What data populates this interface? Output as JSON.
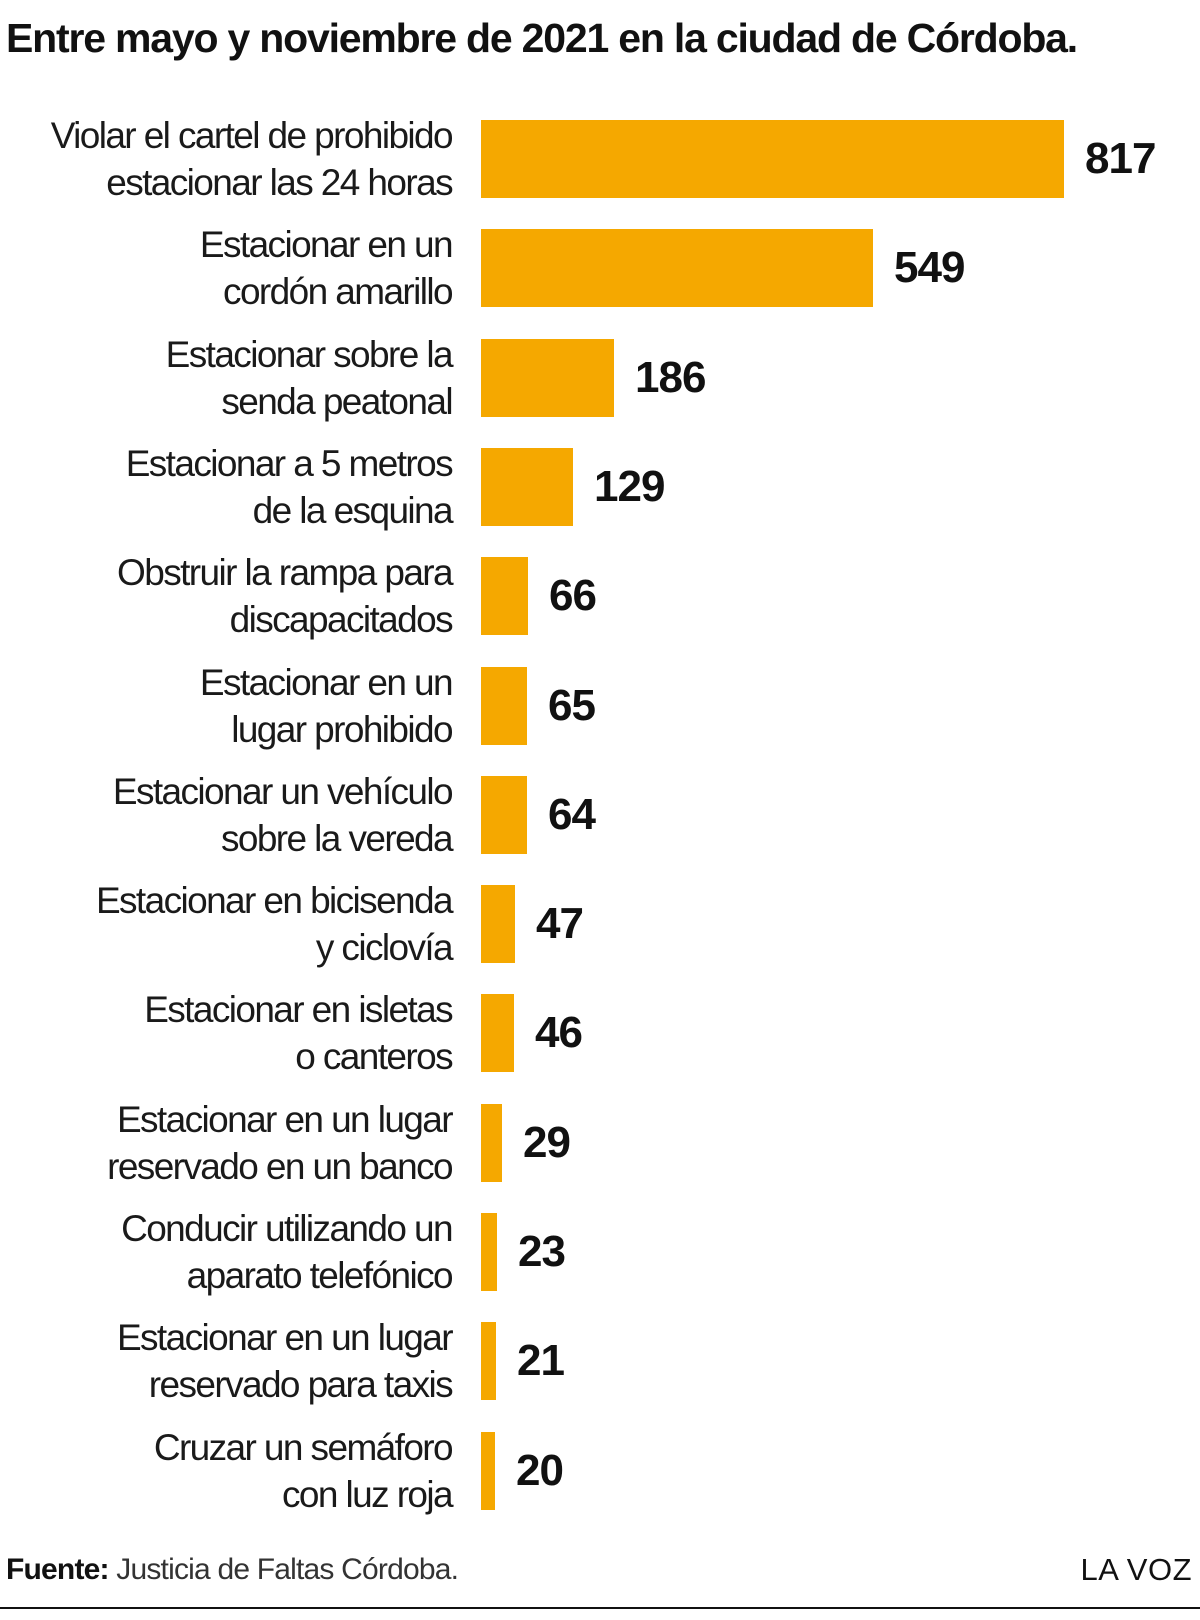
{
  "chart_data": {
    "type": "bar",
    "orientation": "horizontal",
    "title": "Entre mayo y noviembre de 2021 en la ciudad de Córdoba.",
    "categories": [
      "Violar el cartel de prohibido\nestacionar las 24 horas",
      "Estacionar en un\ncordón amarillo",
      "Estacionar sobre la\nsenda peatonal",
      "Estacionar a 5 metros\nde la esquina",
      "Obstruir la rampa para\ndiscapacitados",
      "Estacionar en un\nlugar prohibido",
      "Estacionar un vehículo\nsobre la vereda",
      "Estacionar en bicisenda\ny ciclovía",
      "Estacionar en isletas\no canteros",
      "Estacionar en un lugar\nreservado en un banco",
      "Conducir utilizando un\naparato telefónico",
      "Estacionar en un lugar\nreservado para taxis",
      "Cruzar un semáforo\ncon luz roja"
    ],
    "values": [
      817,
      549,
      186,
      129,
      66,
      65,
      64,
      47,
      46,
      29,
      23,
      21,
      20
    ],
    "xlim": [
      0,
      817
    ],
    "grid": false,
    "legend": "none",
    "bar_color": "#f5a800"
  },
  "footer": {
    "source_label": "Fuente:",
    "source_text": " Justicia de Faltas Córdoba.",
    "brand": "LA VOZ"
  }
}
